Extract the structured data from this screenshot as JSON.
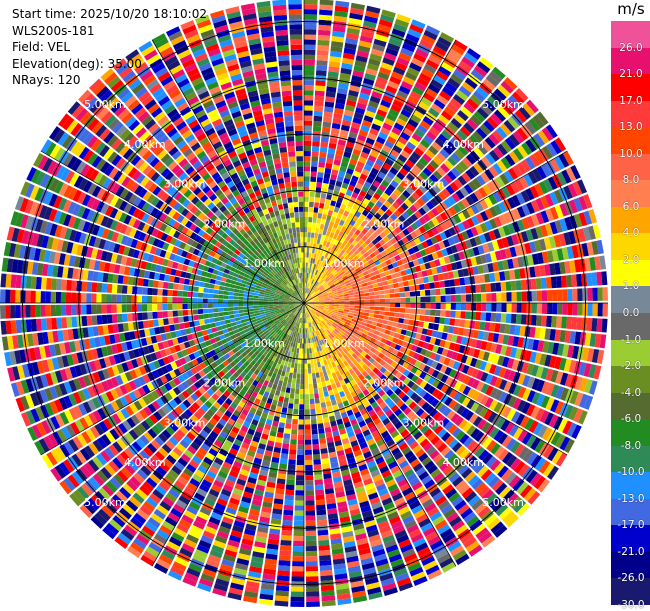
{
  "info": {
    "start_time": "Start time: 2025/10/20 18:10:02",
    "instrument": "WLS200s-181",
    "field": "Field: VEL",
    "elevation": "Elevation(deg): 35.00",
    "nrays": "NRays: 120"
  },
  "colorbar": {
    "unit": "m/s",
    "levels": [
      {
        "label": "26.0",
        "color": "#f0529a"
      },
      {
        "label": "21.0",
        "color": "#e8106f"
      },
      {
        "label": "17.0",
        "color": "#ff0000"
      },
      {
        "label": "13.0",
        "color": "#ff3a3a"
      },
      {
        "label": "10.0",
        "color": "#ff4500"
      },
      {
        "label": "8.0",
        "color": "#ff6347"
      },
      {
        "label": "6.0",
        "color": "#ff7f50"
      },
      {
        "label": "4.0",
        "color": "#ffa500"
      },
      {
        "label": "2.0",
        "color": "#ffd700"
      },
      {
        "label": "1.0",
        "color": "#ffff00"
      },
      {
        "label": "0.0",
        "color": "#778899"
      },
      {
        "label": "-1.0",
        "color": "#696969"
      },
      {
        "label": "-2.0",
        "color": "#9acd32"
      },
      {
        "label": "-4.0",
        "color": "#6b8e23"
      },
      {
        "label": "-6.0",
        "color": "#556b2f"
      },
      {
        "label": "-8.0",
        "color": "#228b22"
      },
      {
        "label": "-10.0",
        "color": "#2e8b57"
      },
      {
        "label": "-13.0",
        "color": "#1e90ff"
      },
      {
        "label": "-17.0",
        "color": "#4169e1"
      },
      {
        "label": "-21.0",
        "color": "#0000cd"
      },
      {
        "label": "-26.0",
        "color": "#00008b"
      },
      {
        "label": "-30.0",
        "color": "#191970"
      }
    ]
  },
  "chart_data": {
    "type": "heatmap",
    "projection": "polar",
    "field": "VEL",
    "nrays": 120,
    "range_rings": [
      {
        "label": "1.00km",
        "km": 1
      },
      {
        "label": "2.00km",
        "km": 2
      },
      {
        "label": "3.00km",
        "km": 3
      },
      {
        "label": "4.00km",
        "km": 4
      },
      {
        "label": "5.00km",
        "km": 5
      }
    ],
    "ring_labels": [
      "1.00km",
      "2.00km",
      "3.00km",
      "4.00km",
      "5.00km"
    ],
    "max_range_km": 5.4,
    "radial_spokes_deg": [
      0,
      30,
      60,
      90,
      120,
      150,
      180,
      210,
      240,
      270,
      300,
      330
    ],
    "value_range": [
      -30,
      26
    ],
    "pattern": "negative (toward) velocities to the west, positive (away) to the east within ~2 km; noisy random values beyond"
  }
}
